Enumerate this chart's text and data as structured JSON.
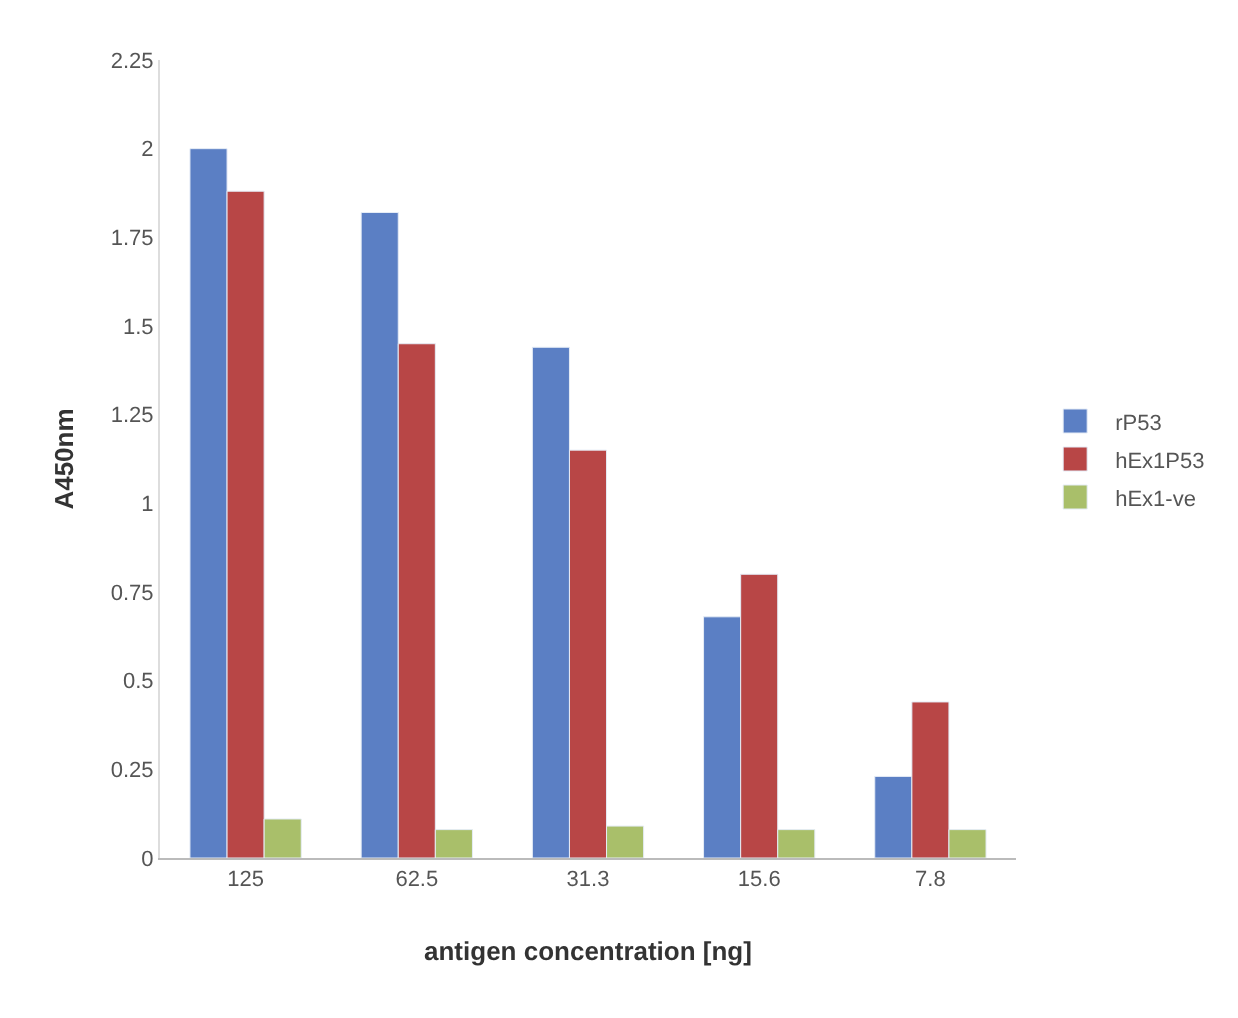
{
  "chart_data": {
    "type": "bar",
    "xlabel": "antigen concentration [ng]",
    "ylabel": "A450nm",
    "categories": [
      "125",
      "62.5",
      "31.3",
      "15.6",
      "7.8"
    ],
    "series": [
      {
        "name": "rP53",
        "color": "#5b7fc4",
        "values": [
          2.0,
          1.82,
          1.44,
          0.68,
          0.23
        ]
      },
      {
        "name": "hEx1P53",
        "color": "#b84646",
        "values": [
          1.88,
          1.45,
          1.15,
          0.8,
          0.44
        ]
      },
      {
        "name": "hEx1-ve",
        "color": "#a9bf6a",
        "values": [
          0.11,
          0.08,
          0.09,
          0.08,
          0.08
        ]
      }
    ],
    "ylim": [
      0,
      2.25
    ],
    "yticks": [
      0,
      0.25,
      0.5,
      0.75,
      1,
      1.25,
      1.5,
      1.75,
      2,
      2.25
    ],
    "legend": "right"
  }
}
